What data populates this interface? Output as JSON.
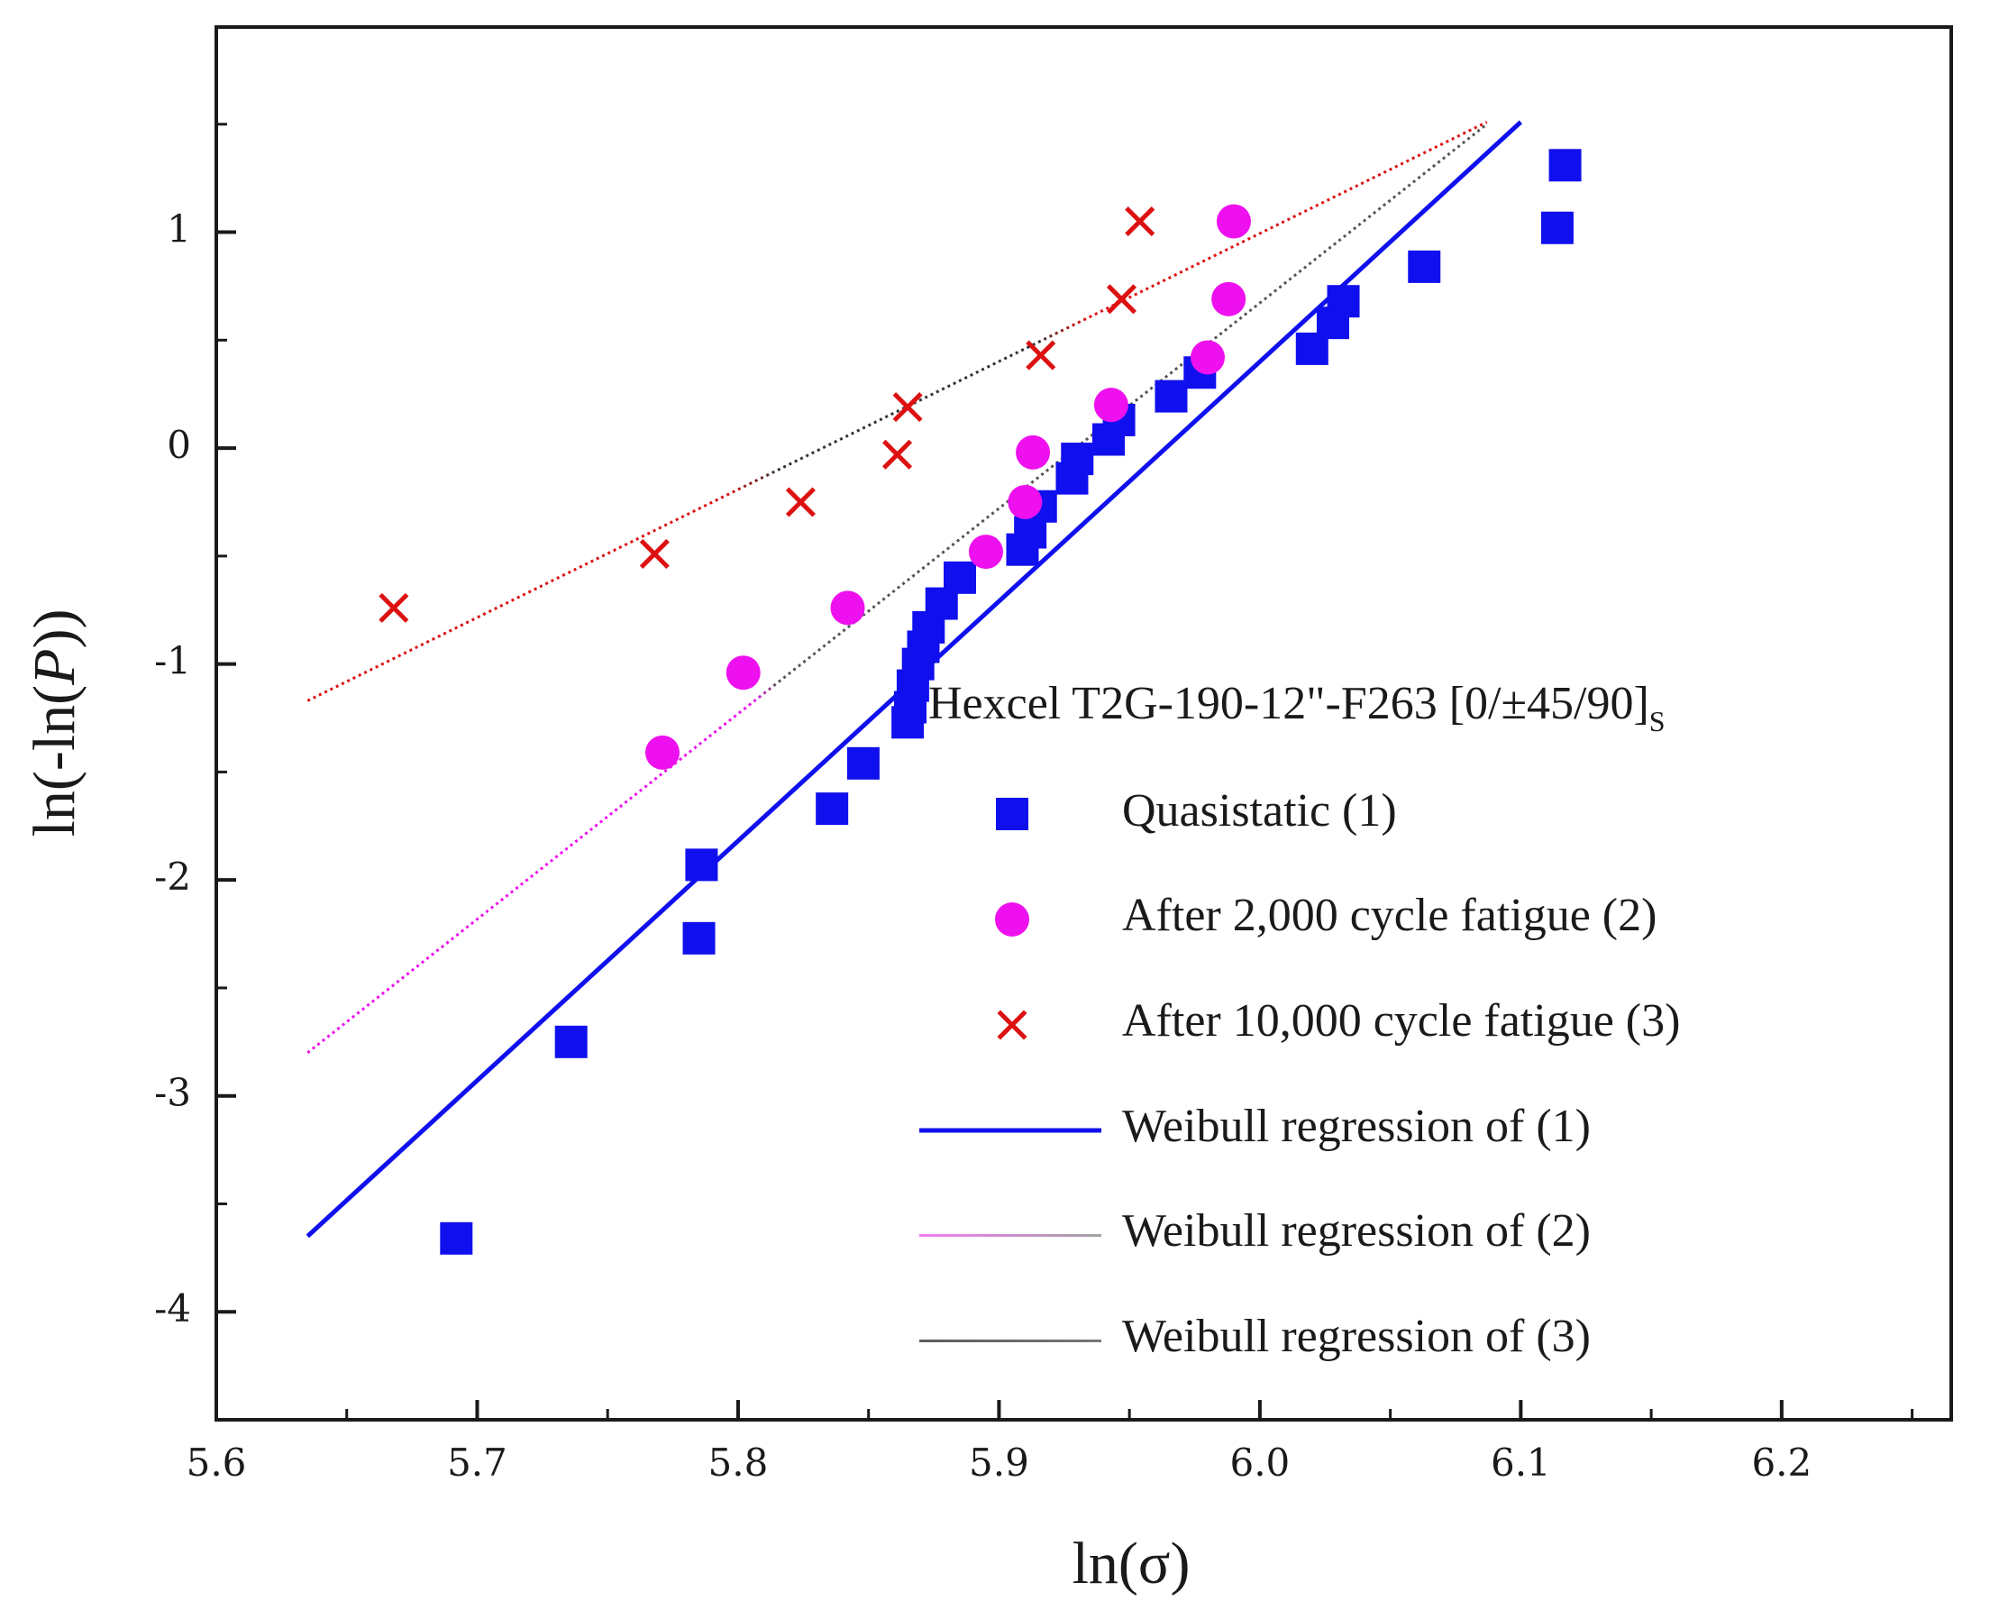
{
  "chart_data": {
    "type": "scatter",
    "title": "",
    "xlabel": "ln(σ)",
    "ylabel_parts": [
      "ln(-ln(",
      "P",
      "))"
    ],
    "xlim": [
      5.6,
      6.265
    ],
    "ylim": [
      -4.5,
      1.95
    ],
    "x_ticks": [
      5.6,
      5.7,
      5.8,
      5.9,
      6.0,
      6.1,
      6.2
    ],
    "x_tick_labels": [
      "5.6",
      "5.7",
      "5.8",
      "5.9",
      "6.0",
      "6.1",
      "6.2"
    ],
    "y_ticks": [
      -4,
      -3,
      -2,
      -1,
      0,
      1
    ],
    "y_tick_labels": [
      "-4",
      "-3",
      "-2",
      "-1",
      "0",
      "1"
    ],
    "grid": false,
    "legend": {
      "placement": "lower-right",
      "title_main": "Hexcel T2G-190-12\"-F263 [0/±45/90]",
      "title_sub": "S",
      "entries": [
        "Quasistatic (1)",
        "After 2,000 cycle fatigue (2)",
        "After 10,000 cycle fatigue (3)",
        "Weibull regression of (1)",
        "Weibull regression of (2)",
        "Weibull regression of (3)"
      ]
    },
    "colors": {
      "quasistatic": "#1010ee",
      "fatigue_2000": "#ee10ee",
      "fatigue_10000": "#dd1111",
      "regression_2_3": "#444444"
    },
    "series": [
      {
        "name": "Quasistatic (1)",
        "marker": "square",
        "points": [
          [
            5.692,
            -3.66
          ],
          [
            5.736,
            -2.75
          ],
          [
            5.785,
            -2.27
          ],
          [
            5.786,
            -1.93
          ],
          [
            5.836,
            -1.67
          ],
          [
            5.848,
            -1.46
          ],
          [
            5.865,
            -1.27
          ],
          [
            5.866,
            -1.2
          ],
          [
            5.867,
            -1.1
          ],
          [
            5.869,
            -1.0
          ],
          [
            5.871,
            -0.92
          ],
          [
            5.873,
            -0.83
          ],
          [
            5.878,
            -0.72
          ],
          [
            5.885,
            -0.6
          ],
          [
            5.909,
            -0.47
          ],
          [
            5.912,
            -0.39
          ],
          [
            5.916,
            -0.27
          ],
          [
            5.928,
            -0.14
          ],
          [
            5.93,
            -0.05
          ],
          [
            5.942,
            0.04
          ],
          [
            5.946,
            0.13
          ],
          [
            5.966,
            0.24
          ],
          [
            5.977,
            0.35
          ],
          [
            6.02,
            0.46
          ],
          [
            6.028,
            0.58
          ],
          [
            6.032,
            0.68
          ],
          [
            6.063,
            0.84
          ],
          [
            6.114,
            1.02
          ],
          [
            6.117,
            1.31
          ]
        ]
      },
      {
        "name": "After 2,000 cycle fatigue (2)",
        "marker": "circle",
        "points": [
          [
            5.771,
            -1.41
          ],
          [
            5.802,
            -1.04
          ],
          [
            5.842,
            -0.74
          ],
          [
            5.895,
            -0.48
          ],
          [
            5.91,
            -0.25
          ],
          [
            5.913,
            -0.02
          ],
          [
            5.943,
            0.2
          ],
          [
            5.98,
            0.42
          ],
          [
            5.988,
            0.69
          ],
          [
            5.99,
            1.05
          ]
        ]
      },
      {
        "name": "After 10,000 cycle fatigue (3)",
        "marker": "x",
        "points": [
          [
            5.668,
            -0.74
          ],
          [
            5.768,
            -0.49
          ],
          [
            5.824,
            -0.25
          ],
          [
            5.861,
            -0.03
          ],
          [
            5.865,
            0.19
          ],
          [
            5.916,
            0.43
          ],
          [
            5.947,
            0.69
          ],
          [
            5.954,
            1.05
          ]
        ]
      }
    ],
    "regressions": [
      {
        "name": "Weibull regression of (1)",
        "style": "solid",
        "x": [
          5.635,
          6.1
        ],
        "y": [
          -3.65,
          1.51
        ]
      },
      {
        "name": "Weibull regression of (2)",
        "style": "dotted-gradient",
        "x": [
          5.635,
          6.087
        ],
        "y": [
          -2.8,
          1.5
        ]
      },
      {
        "name": "Weibull regression of (3)",
        "style": "dotted-gradient",
        "x": [
          5.635,
          6.087
        ],
        "y": [
          -1.17,
          1.51
        ]
      }
    ]
  }
}
